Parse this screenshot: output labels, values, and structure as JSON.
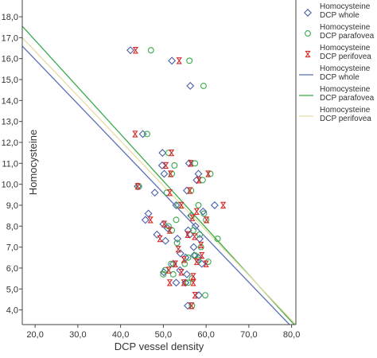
{
  "chart_data": {
    "type": "scatter",
    "title": "",
    "xlabel": "DCP vessel density",
    "ylabel": "Homocysteine",
    "xlim": [
      17,
      81
    ],
    "ylim": [
      3.3,
      18.8
    ],
    "x_ticks": [
      "20,0",
      "30,0",
      "40,0",
      "50,0",
      "60,0",
      "70,0",
      "80,0"
    ],
    "x_tick_values": [
      20,
      30,
      40,
      50,
      60,
      70,
      80
    ],
    "y_ticks": [
      "4,0",
      "5,0",
      "6,0",
      "7,0",
      "8,0",
      "9,0",
      "10,0",
      "11,0",
      "12,0",
      "13,0",
      "14,0",
      "15,0",
      "16,0",
      "17,0",
      "18,0"
    ],
    "y_tick_values": [
      4,
      5,
      6,
      7,
      8,
      9,
      10,
      11,
      12,
      13,
      14,
      15,
      16,
      17,
      18
    ],
    "grid": false,
    "legend_position": "right",
    "series": [
      {
        "name": "Homocysteine\nDCP whole",
        "marker": "diamond",
        "color": "#4a5fa8",
        "points": [
          [
            42.3,
            16.4
          ],
          [
            52.0,
            15.9
          ],
          [
            56.3,
            14.7
          ],
          [
            45.2,
            12.4
          ],
          [
            49.8,
            11.5
          ],
          [
            56.0,
            11.0
          ],
          [
            49.7,
            10.9
          ],
          [
            58.2,
            10.5
          ],
          [
            50.2,
            10.5
          ],
          [
            57.8,
            10.2
          ],
          [
            44.0,
            9.9
          ],
          [
            48.0,
            9.6
          ],
          [
            55.5,
            9.7
          ],
          [
            53.0,
            9.0
          ],
          [
            62.0,
            9.0
          ],
          [
            59.3,
            8.7
          ],
          [
            46.5,
            8.6
          ],
          [
            56.5,
            8.5
          ],
          [
            45.8,
            8.3
          ],
          [
            50.0,
            8.1
          ],
          [
            57.5,
            8.0
          ],
          [
            51.0,
            7.9
          ],
          [
            55.8,
            7.8
          ],
          [
            48.5,
            7.6
          ],
          [
            56.2,
            7.6
          ],
          [
            58.5,
            7.4
          ],
          [
            50.5,
            7.3
          ],
          [
            53.3,
            7.4
          ],
          [
            57.1,
            7.0
          ],
          [
            54.0,
            6.7
          ],
          [
            57.2,
            6.6
          ],
          [
            55.2,
            6.5
          ],
          [
            58.2,
            6.5
          ],
          [
            52.3,
            6.2
          ],
          [
            59.0,
            6.2
          ],
          [
            53.9,
            5.9
          ],
          [
            50.1,
            5.8
          ],
          [
            55.5,
            5.7
          ],
          [
            55.2,
            5.3
          ],
          [
            53.0,
            5.3
          ],
          [
            58.3,
            4.7
          ],
          [
            55.7,
            4.2
          ]
        ]
      },
      {
        "name": "Homocysteine\nDCP parafovea",
        "marker": "circle",
        "color": "#3aaa4a",
        "points": [
          [
            47.1,
            16.4
          ],
          [
            56.1,
            15.9
          ],
          [
            59.4,
            14.7
          ],
          [
            46.2,
            12.4
          ],
          [
            51.2,
            11.5
          ],
          [
            57.4,
            11.0
          ],
          [
            52.6,
            10.9
          ],
          [
            61.0,
            10.5
          ],
          [
            52.0,
            10.5
          ],
          [
            59.2,
            10.2
          ],
          [
            44.3,
            9.9
          ],
          [
            50.8,
            9.6
          ],
          [
            56.5,
            9.7
          ],
          [
            53.5,
            9.0
          ],
          [
            58.2,
            9.0
          ],
          [
            59.5,
            8.6
          ],
          [
            53.0,
            8.3
          ],
          [
            56.6,
            8.5
          ],
          [
            51.2,
            8.0
          ],
          [
            60.0,
            8.3
          ],
          [
            52.0,
            7.8
          ],
          [
            58.5,
            7.6
          ],
          [
            57.0,
            7.8
          ],
          [
            53.2,
            7.2
          ],
          [
            62.7,
            7.4
          ],
          [
            58.8,
            7.0
          ],
          [
            57.5,
            6.6
          ],
          [
            55.8,
            6.5
          ],
          [
            58.1,
            6.4
          ],
          [
            55.0,
            6.2
          ],
          [
            51.8,
            6.2
          ],
          [
            60.5,
            6.3
          ],
          [
            50.4,
            5.9
          ],
          [
            52.3,
            5.7
          ],
          [
            56.7,
            5.5
          ],
          [
            55.8,
            5.3
          ],
          [
            50.0,
            5.7
          ],
          [
            59.8,
            4.7
          ],
          [
            56.7,
            4.2
          ]
        ]
      },
      {
        "name": "Homocysteine\nDCP perifovea",
        "marker": "hourglass",
        "color": "#d42a2a",
        "points": [
          [
            43.5,
            16.4
          ],
          [
            53.7,
            15.9
          ],
          [
            43.4,
            12.4
          ],
          [
            51.9,
            11.5
          ],
          [
            56.4,
            11.0
          ],
          [
            50.6,
            10.9
          ],
          [
            60.5,
            10.5
          ],
          [
            51.7,
            10.5
          ],
          [
            58.3,
            10.2
          ],
          [
            44.0,
            9.9
          ],
          [
            51.5,
            9.6
          ],
          [
            56.2,
            9.7
          ],
          [
            54.2,
            9.0
          ],
          [
            64.0,
            9.0
          ],
          [
            57.8,
            8.7
          ],
          [
            47.0,
            8.3
          ],
          [
            56.8,
            8.4
          ],
          [
            50.2,
            8.1
          ],
          [
            60.1,
            8.3
          ],
          [
            51.5,
            7.8
          ],
          [
            55.7,
            7.6
          ],
          [
            49.2,
            7.4
          ],
          [
            57.3,
            7.5
          ],
          [
            58.8,
            7.1
          ],
          [
            53.5,
            6.9
          ],
          [
            59.0,
            6.6
          ],
          [
            54.8,
            6.4
          ],
          [
            57.8,
            6.3
          ],
          [
            52.8,
            6.2
          ],
          [
            60.0,
            6.2
          ],
          [
            54.2,
            5.8
          ],
          [
            51.3,
            5.9
          ],
          [
            57.0,
            5.6
          ],
          [
            54.8,
            5.3
          ],
          [
            51.5,
            5.3
          ],
          [
            57.0,
            5.3
          ],
          [
            57.4,
            4.7
          ],
          [
            56.6,
            4.2
          ]
        ]
      }
    ],
    "fit_lines": [
      {
        "name": "Homocysteine\nDCP whole",
        "color": "#5b6fb5",
        "x": [
          17,
          79.5
        ],
        "y": [
          16.6,
          3.3
        ]
      },
      {
        "name": "Homocysteine\nDCP parafovea",
        "color": "#3aaa4a",
        "x": [
          17,
          80.6
        ],
        "y": [
          17.55,
          3.3
        ]
      },
      {
        "name": "Homocysteine\nDCP perifovea",
        "color": "#e8dca4",
        "x": [
          17,
          81
        ],
        "y": [
          17.0,
          3.3
        ]
      }
    ]
  }
}
